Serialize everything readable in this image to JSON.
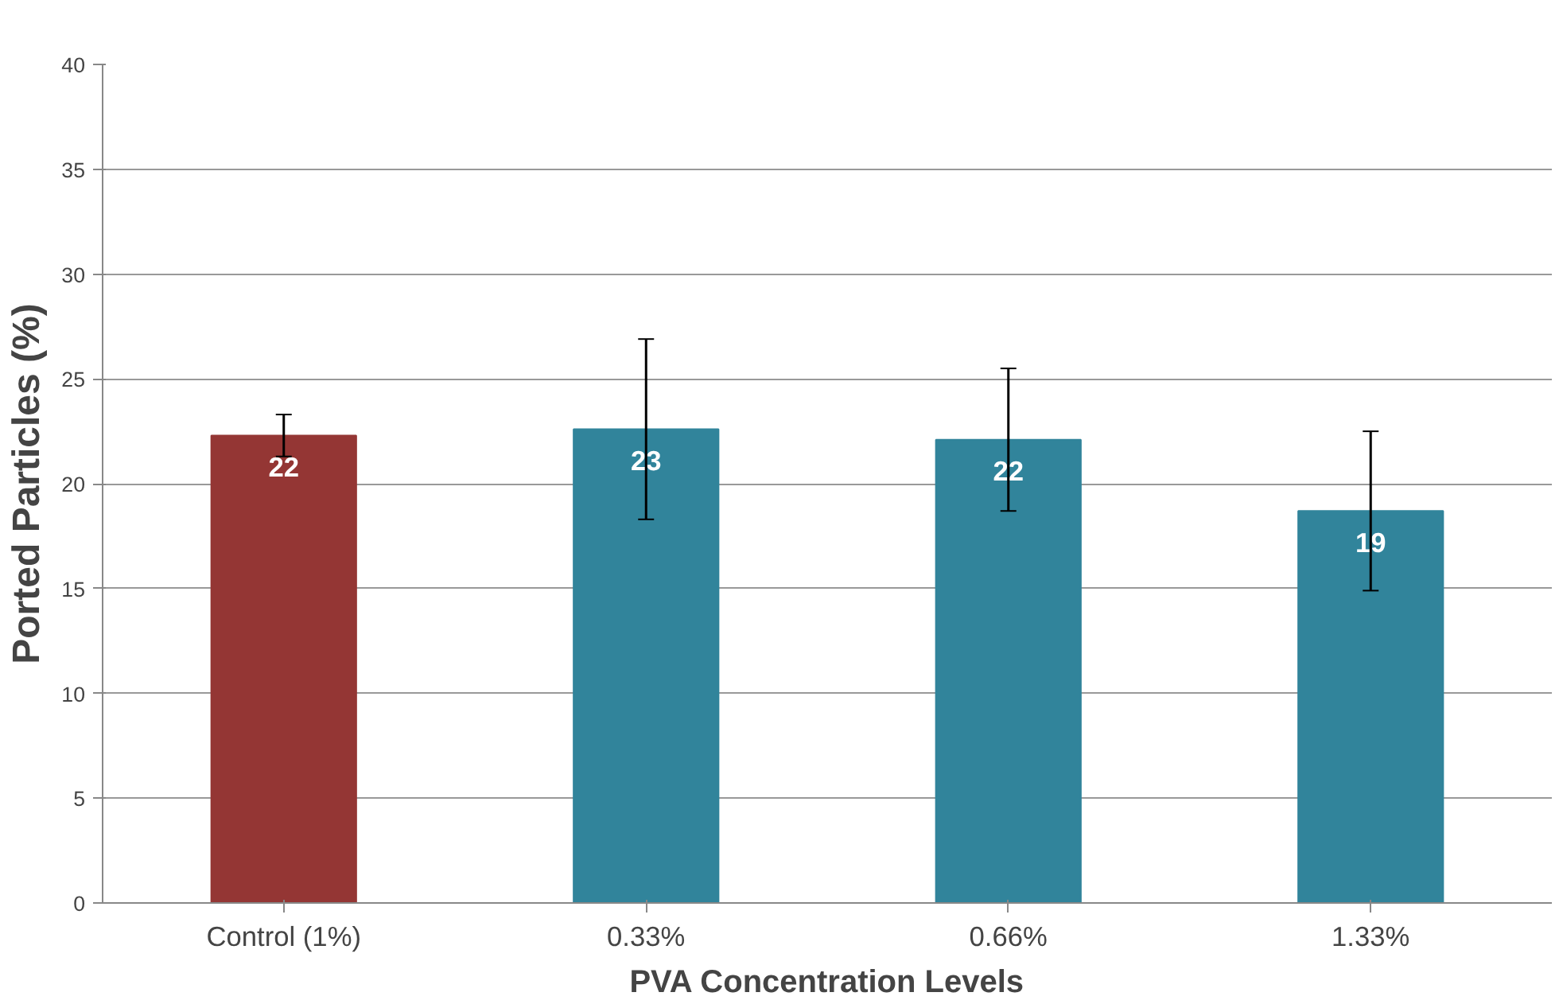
{
  "chart_data": {
    "type": "bar",
    "xlabel": "PVA Concentration Levels",
    "ylabel": "Ported Particles (%)",
    "categories": [
      "Control (1%)",
      "0.33%",
      "0.66%",
      "1.33%"
    ],
    "values": [
      22.3,
      22.6,
      22.1,
      18.7
    ],
    "colors": [
      "#943634",
      "#31849b",
      "#31849b",
      "#31849b"
    ],
    "errors": [
      1.0,
      4.3,
      3.4,
      3.8
    ],
    "value_labels": [
      "22",
      "23",
      "22",
      "19"
    ],
    "ylim": [
      0,
      40
    ],
    "yticks": [
      0,
      5,
      10,
      15,
      20,
      25,
      30,
      35,
      40
    ],
    "grid": "y"
  }
}
